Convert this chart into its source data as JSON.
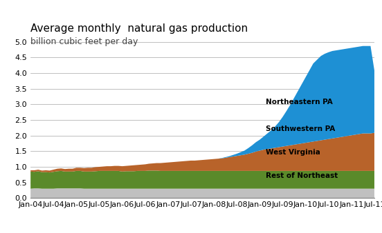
{
  "title": "Average monthly  natural gas production",
  "subtitle": "billion cubic feet per day",
  "ylim": [
    0.0,
    5.0
  ],
  "colors": {
    "Rest of Northeast": "#c0c0c0",
    "West Virginia": "#5a8a2a",
    "Southwestern PA": "#b8632a",
    "Northeastern PA": "#1e90d4"
  },
  "labels": {
    "Rest of Northeast": "Rest of Northeast",
    "West Virginia": "West Virginia",
    "Southwestern PA": "Southwestern PA",
    "Northeastern PA": "Northeastern PA"
  },
  "x_labels": [
    "Jan-04",
    "Jul-04",
    "Jan-05",
    "Jul-05",
    "Jan-06",
    "Jul-06",
    "Jan-07",
    "Jul-07",
    "Jan-08",
    "Jul-08",
    "Jan-09",
    "Jul-09",
    "Jan-10",
    "Jul-10",
    "Jan-11",
    "Jul-11"
  ],
  "x_label_indices": [
    0,
    6,
    12,
    18,
    24,
    30,
    36,
    42,
    48,
    54,
    60,
    66,
    72,
    78,
    84,
    90
  ],
  "background_color": "#ffffff",
  "title_fontsize": 11,
  "subtitle_fontsize": 9,
  "tick_fontsize": 8,
  "rest_of_northeast": [
    0.3,
    0.31,
    0.31,
    0.3,
    0.3,
    0.3,
    0.3,
    0.31,
    0.31,
    0.31,
    0.31,
    0.31,
    0.31,
    0.31,
    0.3,
    0.3,
    0.3,
    0.3,
    0.3,
    0.3,
    0.3,
    0.3,
    0.3,
    0.3,
    0.3,
    0.3,
    0.3,
    0.3,
    0.3,
    0.3,
    0.3,
    0.3,
    0.3,
    0.3,
    0.3,
    0.3,
    0.3,
    0.3,
    0.3,
    0.3,
    0.3,
    0.3,
    0.3,
    0.3,
    0.3,
    0.3,
    0.3,
    0.3,
    0.3,
    0.3,
    0.3,
    0.3,
    0.3,
    0.3,
    0.3,
    0.3,
    0.3,
    0.3,
    0.3,
    0.3,
    0.3,
    0.3,
    0.3,
    0.3,
    0.3,
    0.3,
    0.3,
    0.3,
    0.3,
    0.3,
    0.3,
    0.3,
    0.3,
    0.3,
    0.3,
    0.3,
    0.3,
    0.3,
    0.3,
    0.3,
    0.3,
    0.3,
    0.3,
    0.3,
    0.3,
    0.3,
    0.3,
    0.3,
    0.3,
    0.3,
    0.3
  ],
  "west_virginia": [
    0.55,
    0.53,
    0.55,
    0.53,
    0.53,
    0.52,
    0.54,
    0.55,
    0.56,
    0.54,
    0.54,
    0.54,
    0.56,
    0.56,
    0.55,
    0.55,
    0.55,
    0.56,
    0.57,
    0.57,
    0.57,
    0.57,
    0.57,
    0.57,
    0.55,
    0.56,
    0.56,
    0.56,
    0.57,
    0.57,
    0.57,
    0.58,
    0.58,
    0.58,
    0.57,
    0.57,
    0.57,
    0.57,
    0.57,
    0.57,
    0.57,
    0.57,
    0.57,
    0.57,
    0.57,
    0.57,
    0.57,
    0.57,
    0.57,
    0.57,
    0.57,
    0.57,
    0.57,
    0.57,
    0.57,
    0.57,
    0.57,
    0.57,
    0.57,
    0.57,
    0.57,
    0.57,
    0.57,
    0.57,
    0.57,
    0.57,
    0.57,
    0.57,
    0.57,
    0.57,
    0.57,
    0.57,
    0.57,
    0.57,
    0.57,
    0.57,
    0.57,
    0.57,
    0.57,
    0.57,
    0.57,
    0.57,
    0.57,
    0.57,
    0.57,
    0.57,
    0.57,
    0.57,
    0.57,
    0.57,
    0.57
  ],
  "southwestern_pa": [
    0.04,
    0.05,
    0.05,
    0.05,
    0.06,
    0.06,
    0.07,
    0.08,
    0.08,
    0.08,
    0.09,
    0.09,
    0.1,
    0.1,
    0.11,
    0.12,
    0.12,
    0.13,
    0.13,
    0.14,
    0.15,
    0.15,
    0.16,
    0.16,
    0.17,
    0.17,
    0.18,
    0.19,
    0.19,
    0.2,
    0.21,
    0.22,
    0.23,
    0.24,
    0.25,
    0.26,
    0.27,
    0.28,
    0.29,
    0.3,
    0.31,
    0.32,
    0.33,
    0.33,
    0.34,
    0.35,
    0.36,
    0.37,
    0.38,
    0.39,
    0.4,
    0.42,
    0.44,
    0.46,
    0.48,
    0.5,
    0.52,
    0.55,
    0.58,
    0.62,
    0.65,
    0.68,
    0.7,
    0.72,
    0.74,
    0.76,
    0.78,
    0.8,
    0.82,
    0.84,
    0.86,
    0.88,
    0.9,
    0.92,
    0.94,
    0.96,
    0.98,
    1.0,
    1.02,
    1.04,
    1.06,
    1.08,
    1.1,
    1.12,
    1.14,
    1.16,
    1.18,
    1.2,
    1.2,
    1.2,
    1.22
  ],
  "northeastern_pa": [
    0.0,
    0.0,
    0.0,
    0.0,
    0.0,
    0.0,
    0.0,
    0.0,
    0.0,
    0.0,
    0.0,
    0.0,
    0.0,
    0.0,
    0.0,
    0.0,
    0.0,
    0.0,
    0.0,
    0.0,
    0.0,
    0.0,
    0.0,
    0.0,
    0.0,
    0.0,
    0.0,
    0.0,
    0.0,
    0.0,
    0.0,
    0.0,
    0.0,
    0.0,
    0.0,
    0.0,
    0.0,
    0.0,
    0.0,
    0.0,
    0.0,
    0.0,
    0.0,
    0.0,
    0.0,
    0.0,
    0.0,
    0.0,
    0.0,
    0.0,
    0.01,
    0.02,
    0.03,
    0.05,
    0.07,
    0.1,
    0.13,
    0.18,
    0.24,
    0.3,
    0.35,
    0.42,
    0.5,
    0.58,
    0.68,
    0.8,
    0.95,
    1.12,
    1.3,
    1.5,
    1.7,
    1.9,
    2.1,
    2.3,
    2.5,
    2.6,
    2.7,
    2.75,
    2.78,
    2.8,
    2.8,
    2.8,
    2.8,
    2.8,
    2.8,
    2.8,
    2.8,
    2.8,
    2.8,
    2.8,
    2.0
  ]
}
